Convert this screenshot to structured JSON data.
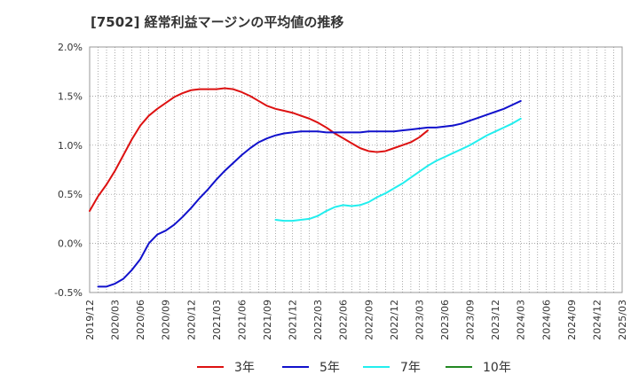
{
  "chart_data": {
    "type": "line",
    "title": "[7502]  経常利益マージンの平均値の推移",
    "xlabel": "",
    "ylabel": "",
    "x_ticks": [
      "2019/12",
      "2020/03",
      "2020/06",
      "2020/09",
      "2020/12",
      "2021/03",
      "2021/06",
      "2021/09",
      "2021/12",
      "2022/03",
      "2022/06",
      "2022/09",
      "2022/12",
      "2023/03",
      "2023/06",
      "2023/09",
      "2023/12",
      "2024/03",
      "2024/06",
      "2024/09",
      "2024/12",
      "2025/03"
    ],
    "y_ticks": [
      "-0.5%",
      "0.0%",
      "0.5%",
      "1.0%",
      "1.5%",
      "2.0%"
    ],
    "ylim": [
      -0.5,
      2.0
    ],
    "grid": true,
    "legend_position": "bottom",
    "series": [
      {
        "name": "3年",
        "color": "#dd1111",
        "points": [
          [
            0,
            0.33
          ],
          [
            1,
            0.48
          ],
          [
            2,
            0.6
          ],
          [
            3,
            0.74
          ],
          [
            4,
            0.9
          ],
          [
            5,
            1.06
          ],
          [
            6,
            1.2
          ],
          [
            7,
            1.3
          ],
          [
            8,
            1.37
          ],
          [
            9,
            1.43
          ],
          [
            10,
            1.49
          ],
          [
            11,
            1.53
          ],
          [
            12,
            1.56
          ],
          [
            13,
            1.57
          ],
          [
            14,
            1.57
          ],
          [
            15,
            1.57
          ],
          [
            16,
            1.58
          ],
          [
            17,
            1.57
          ],
          [
            18,
            1.54
          ],
          [
            19,
            1.5
          ],
          [
            20,
            1.45
          ],
          [
            21,
            1.4
          ],
          [
            22,
            1.37
          ],
          [
            23,
            1.35
          ],
          [
            24,
            1.33
          ],
          [
            25,
            1.3
          ],
          [
            26,
            1.27
          ],
          [
            27,
            1.23
          ],
          [
            28,
            1.18
          ],
          [
            29,
            1.12
          ],
          [
            30,
            1.07
          ],
          [
            31,
            1.02
          ],
          [
            32,
            0.97
          ],
          [
            33,
            0.94
          ],
          [
            34,
            0.93
          ],
          [
            35,
            0.94
          ],
          [
            36,
            0.97
          ],
          [
            37,
            1.0
          ],
          [
            38,
            1.03
          ],
          [
            39,
            1.08
          ],
          [
            40,
            1.15
          ]
        ]
      },
      {
        "name": "5年",
        "color": "#1111cc",
        "points": [
          [
            1,
            -0.44
          ],
          [
            2,
            -0.44
          ],
          [
            3,
            -0.41
          ],
          [
            4,
            -0.36
          ],
          [
            5,
            -0.27
          ],
          [
            6,
            -0.16
          ],
          [
            7,
            0.0
          ],
          [
            8,
            0.09
          ],
          [
            9,
            0.13
          ],
          [
            10,
            0.19
          ],
          [
            11,
            0.27
          ],
          [
            12,
            0.36
          ],
          [
            13,
            0.46
          ],
          [
            14,
            0.55
          ],
          [
            15,
            0.65
          ],
          [
            16,
            0.74
          ],
          [
            17,
            0.82
          ],
          [
            18,
            0.9
          ],
          [
            19,
            0.97
          ],
          [
            20,
            1.03
          ],
          [
            21,
            1.07
          ],
          [
            22,
            1.1
          ],
          [
            23,
            1.12
          ],
          [
            24,
            1.13
          ],
          [
            25,
            1.14
          ],
          [
            26,
            1.14
          ],
          [
            27,
            1.14
          ],
          [
            28,
            1.13
          ],
          [
            29,
            1.13
          ],
          [
            30,
            1.13
          ],
          [
            31,
            1.13
          ],
          [
            32,
            1.13
          ],
          [
            33,
            1.14
          ],
          [
            34,
            1.14
          ],
          [
            35,
            1.14
          ],
          [
            36,
            1.14
          ],
          [
            37,
            1.15
          ],
          [
            38,
            1.16
          ],
          [
            39,
            1.17
          ],
          [
            40,
            1.18
          ],
          [
            41,
            1.18
          ],
          [
            42,
            1.19
          ],
          [
            43,
            1.2
          ],
          [
            44,
            1.22
          ],
          [
            45,
            1.25
          ],
          [
            46,
            1.28
          ],
          [
            47,
            1.31
          ],
          [
            48,
            1.34
          ],
          [
            49,
            1.37
          ],
          [
            50,
            1.41
          ],
          [
            51,
            1.45
          ]
        ]
      },
      {
        "name": "7年",
        "color": "#22eeee",
        "points": [
          [
            22,
            0.24
          ],
          [
            23,
            0.23
          ],
          [
            24,
            0.23
          ],
          [
            25,
            0.24
          ],
          [
            26,
            0.25
          ],
          [
            27,
            0.28
          ],
          [
            28,
            0.33
          ],
          [
            29,
            0.37
          ],
          [
            30,
            0.39
          ],
          [
            31,
            0.38
          ],
          [
            32,
            0.39
          ],
          [
            33,
            0.42
          ],
          [
            34,
            0.47
          ],
          [
            35,
            0.51
          ],
          [
            36,
            0.56
          ],
          [
            37,
            0.61
          ],
          [
            38,
            0.67
          ],
          [
            39,
            0.73
          ],
          [
            40,
            0.79
          ],
          [
            41,
            0.84
          ],
          [
            42,
            0.88
          ],
          [
            43,
            0.92
          ],
          [
            44,
            0.96
          ],
          [
            45,
            1.0
          ],
          [
            46,
            1.05
          ],
          [
            47,
            1.1
          ],
          [
            48,
            1.14
          ],
          [
            49,
            1.18
          ],
          [
            50,
            1.22
          ],
          [
            51,
            1.27
          ]
        ]
      },
      {
        "name": "10年",
        "color": "#228822",
        "points": []
      }
    ]
  }
}
